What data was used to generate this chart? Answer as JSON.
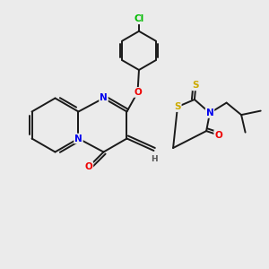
{
  "background_color": "#ebebeb",
  "bond_color": "#1a1a1a",
  "atom_colors": {
    "N": "#0000ee",
    "O": "#ee0000",
    "S": "#ccaa00",
    "Cl": "#00bb00",
    "H": "#555555",
    "C": "#1a1a1a"
  },
  "lw": 1.4
}
